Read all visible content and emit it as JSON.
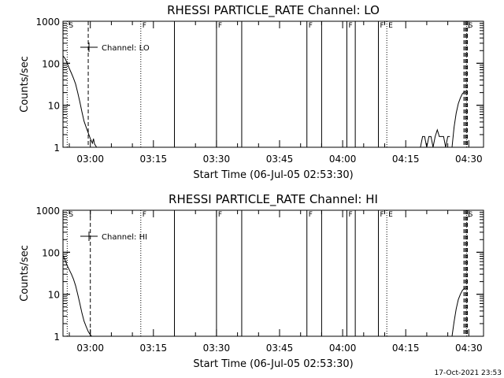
{
  "chart_data": [
    {
      "type": "line",
      "title": "RHESSI PARTICLE_RATE Channel: LO",
      "xlabel": "Start Time (06-Jul-05 02:53:30)",
      "ylabel": "Counts/sec",
      "xlim": [
        "02:53:30",
        "04:33:30"
      ],
      "ylim": [
        1,
        1000
      ],
      "y_scale": "log",
      "x_ticks": [
        "03:00",
        "03:15",
        "03:30",
        "03:45",
        "04:00",
        "04:15",
        "04:30"
      ],
      "y_ticks": [
        "1",
        "10",
        "100",
        "1000"
      ],
      "legend": {
        "entries": [
          "Channel: LO"
        ],
        "placement": "top-left"
      },
      "series": [
        {
          "name": "Channel: LO",
          "segments": [
            {
              "x": [
                "02:53:30",
                "02:54:00",
                "02:54:30",
                "02:55:00",
                "02:55:30",
                "02:56:00",
                "02:56:30",
                "02:57:00",
                "02:57:30",
                "02:58:00",
                "02:58:30",
                "02:59:00",
                "02:59:30",
                "03:00:00",
                "03:00:30",
                "03:00:45",
                "03:01:00",
                "03:01:30"
              ],
              "y": [
                150,
                130,
                100,
                75,
                58,
                44,
                32,
                20,
                12,
                7,
                4.2,
                3,
                2.2,
                1.6,
                1.25,
                1.6,
                1.2,
                1
              ]
            },
            {
              "x": [
                "04:18:30",
                "04:19:00",
                "04:19:30",
                "04:20:00",
                "04:20:30",
                "04:21:00",
                "04:21:30",
                "04:22:00",
                "04:22:30",
                "04:23:00",
                "04:23:30",
                "04:24:00",
                "04:24:30",
                "04:25:00",
                "04:25:30"
              ],
              "y": [
                1,
                1.8,
                1.8,
                1,
                1.8,
                1.8,
                1,
                1.8,
                2.6,
                1.8,
                1.8,
                1.8,
                1,
                1.8,
                1.8
              ]
            },
            {
              "x": [
                "04:26:00",
                "04:26:30",
                "04:27:00",
                "04:27:30",
                "04:28:00",
                "04:28:30",
                "04:29:00"
              ],
              "y": [
                1,
                3,
                6.5,
                11,
                15,
                19,
                21
              ]
            }
          ]
        }
      ],
      "flags": [
        {
          "time": "02:54:30",
          "style": "dotted",
          "label": "S"
        },
        {
          "time": "03:12:00",
          "style": "dotted",
          "label": "F"
        },
        {
          "time": "03:20:00",
          "style": "solid",
          "label": ""
        },
        {
          "time": "03:30:00",
          "style": "solid",
          "label": "F"
        },
        {
          "time": "03:36:00",
          "style": "solid",
          "label": ""
        },
        {
          "time": "03:51:30",
          "style": "solid",
          "label": "F"
        },
        {
          "time": "03:55:00",
          "style": "solid",
          "label": ""
        },
        {
          "time": "04:01:00",
          "style": "solid",
          "label": "F"
        },
        {
          "time": "04:03:00",
          "style": "solid",
          "label": ""
        },
        {
          "time": "04:08:30",
          "style": "solid",
          "label": "F"
        },
        {
          "time": "04:10:30",
          "style": "dotted",
          "label": "E"
        },
        {
          "time": "04:29:30",
          "style": "dotted",
          "label": "S"
        },
        {
          "time": "02:59:30",
          "style": "dashed",
          "label": ""
        },
        {
          "time": "04:28:50",
          "style": "dashed",
          "label": ""
        },
        {
          "time": "04:29:10",
          "style": "dashed",
          "label": ""
        },
        {
          "time": "04:29:25",
          "style": "dashed",
          "label": ""
        },
        {
          "time": "04:29:40",
          "style": "dashed",
          "label": ""
        }
      ]
    },
    {
      "type": "line",
      "title": "RHESSI PARTICLE_RATE Channel: HI",
      "xlabel": "Start Time (06-Jul-05 02:53:30)",
      "ylabel": "Counts/sec",
      "xlim": [
        "02:53:30",
        "04:33:30"
      ],
      "ylim": [
        1,
        1000
      ],
      "y_scale": "log",
      "x_ticks": [
        "03:00",
        "03:15",
        "03:30",
        "03:45",
        "04:00",
        "04:15",
        "04:30"
      ],
      "y_ticks": [
        "1",
        "10",
        "100",
        "1000"
      ],
      "legend": {
        "entries": [
          "Channel: HI"
        ],
        "placement": "top-left"
      },
      "series": [
        {
          "name": "Channel: HI",
          "segments": [
            {
              "x": [
                "02:53:30",
                "02:54:00",
                "02:54:30",
                "02:55:00",
                "02:55:30",
                "02:56:00",
                "02:56:30",
                "02:57:00",
                "02:57:30",
                "02:58:00",
                "02:58:30",
                "02:59:00",
                "02:59:30",
                "03:00:00",
                "03:00:20"
              ],
              "y": [
                85,
                65,
                48,
                38,
                30,
                23,
                16,
                10,
                6,
                3.6,
                2.3,
                1.7,
                1.3,
                1.08,
                1
              ]
            },
            {
              "x": [
                "04:26:00",
                "04:26:30",
                "04:27:00",
                "04:27:30",
                "04:28:00",
                "04:28:30",
                "04:29:00"
              ],
              "y": [
                1,
                2.2,
                4.5,
                7.5,
                10,
                12.5,
                14
              ]
            }
          ]
        }
      ],
      "flags": [
        {
          "time": "02:54:30",
          "style": "dotted",
          "label": "S"
        },
        {
          "time": "03:12:00",
          "style": "dotted",
          "label": "F"
        },
        {
          "time": "03:20:00",
          "style": "solid",
          "label": ""
        },
        {
          "time": "03:30:00",
          "style": "solid",
          "label": "F"
        },
        {
          "time": "03:36:00",
          "style": "solid",
          "label": ""
        },
        {
          "time": "03:51:30",
          "style": "solid",
          "label": "F"
        },
        {
          "time": "03:55:00",
          "style": "solid",
          "label": ""
        },
        {
          "time": "04:01:00",
          "style": "solid",
          "label": "F"
        },
        {
          "time": "04:03:00",
          "style": "solid",
          "label": ""
        },
        {
          "time": "04:08:30",
          "style": "solid",
          "label": "F"
        },
        {
          "time": "04:10:30",
          "style": "dotted",
          "label": "E"
        },
        {
          "time": "04:29:30",
          "style": "dotted",
          "label": "S"
        },
        {
          "time": "03:00:00",
          "style": "dashed",
          "label": ""
        },
        {
          "time": "04:28:50",
          "style": "dashed",
          "label": ""
        },
        {
          "time": "04:29:10",
          "style": "dashed",
          "label": ""
        },
        {
          "time": "04:29:25",
          "style": "dashed",
          "label": ""
        },
        {
          "time": "04:29:40",
          "style": "dashed",
          "label": ""
        }
      ]
    }
  ],
  "footer": {
    "timestamp": "17-Oct-2021 23:53"
  },
  "colors": {
    "foreground": "#000000",
    "background": "#ffffff"
  }
}
